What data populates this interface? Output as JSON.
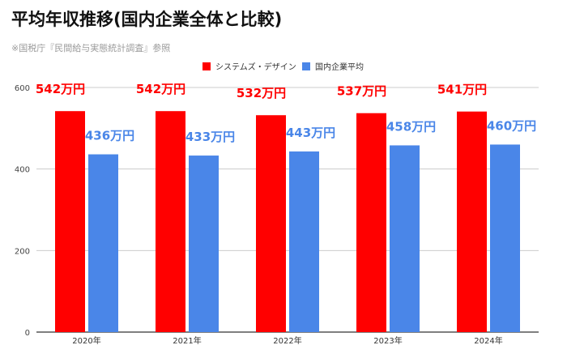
{
  "page": {
    "title": "平均年収推移(国内企業全体と比較)",
    "subtitle": "※国税庁『民間給与実態統計調査』参照"
  },
  "chart_data": {
    "type": "bar",
    "categories": [
      "2020年",
      "2021年",
      "2022年",
      "2023年",
      "2024年"
    ],
    "series": [
      {
        "name": "システムズ・デザイン",
        "color": "#ff0000",
        "values": [
          542,
          542,
          532,
          537,
          541
        ],
        "labels": [
          "542万円",
          "542万円",
          "532万円",
          "537万円",
          "541万円"
        ],
        "label_color": "#ff0000"
      },
      {
        "name": "国内企業平均",
        "color": "#4a86e8",
        "values": [
          436,
          433,
          443,
          458,
          460
        ],
        "labels": [
          "436万円",
          "433万円",
          "443万円",
          "458万円",
          "460万円"
        ],
        "label_color": "#4a86e8"
      }
    ],
    "y_ticks": [
      0,
      200,
      400,
      600
    ],
    "ylim": [
      0,
      600
    ],
    "grid": true,
    "legend_position": "top-center"
  }
}
